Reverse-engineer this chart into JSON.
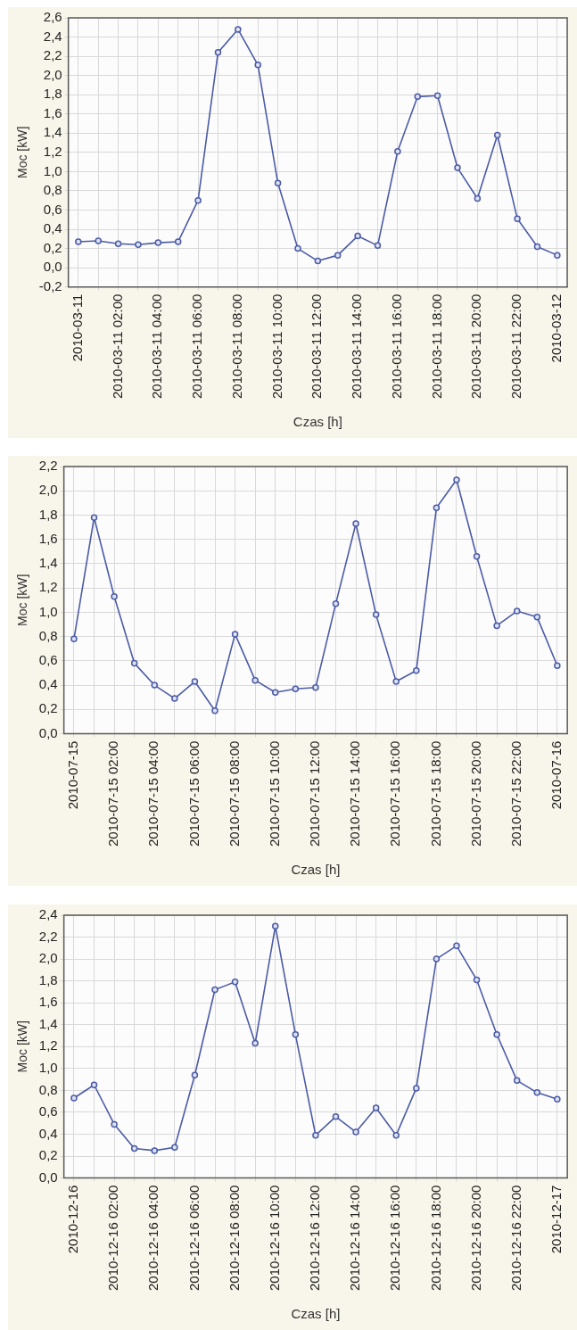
{
  "chart_data": [
    {
      "type": "line",
      "xlabel": "Czas [h]",
      "ylabel": "Moc [kW]",
      "color": "#4b5ba6",
      "marker": "circle",
      "line_style": "solid",
      "grid": true,
      "categories": [
        "2010-03-11",
        null,
        "2010-03-11 02:00",
        null,
        "2010-03-11 04:00",
        null,
        "2010-03-11 06:00",
        null,
        "2010-03-11 08:00",
        null,
        "2010-03-11 10:00",
        null,
        "2010-03-11 12:00",
        null,
        "2010-03-11 14:00",
        null,
        "2010-03-11 16:00",
        null,
        "2010-03-11 18:00",
        null,
        "2010-03-11 20:00",
        null,
        "2010-03-11 22:00",
        null,
        "2010-03-12"
      ],
      "values": [
        0.27,
        0.28,
        0.25,
        0.24,
        0.26,
        0.27,
        0.7,
        2.24,
        2.48,
        2.11,
        0.88,
        0.2,
        0.07,
        0.13,
        0.33,
        0.23,
        1.21,
        1.78,
        1.79,
        1.04,
        0.72,
        1.38,
        0.51,
        0.22,
        0.13
      ],
      "ylim": [
        -0.2,
        2.6
      ],
      "yticks": [
        {
          "value": -0.2,
          "label": "-0,2"
        },
        {
          "value": 0,
          "label": "0,0"
        },
        {
          "value": 0.2,
          "label": "0,2"
        },
        {
          "value": 0.4,
          "label": "0,4"
        },
        {
          "value": 0.6,
          "label": "0,6"
        },
        {
          "value": 0.8,
          "label": "0,8"
        },
        {
          "value": 1.0,
          "label": "1,0"
        },
        {
          "value": 1.2,
          "label": "1,2"
        },
        {
          "value": 1.4,
          "label": "1,4"
        },
        {
          "value": 1.6,
          "label": "1,6"
        },
        {
          "value": 1.8,
          "label": "1,8"
        },
        {
          "value": 2.0,
          "label": "2,0"
        },
        {
          "value": 2.2,
          "label": "2,2"
        },
        {
          "value": 2.4,
          "label": "2,4"
        },
        {
          "value": 2.6,
          "label": "2,6"
        }
      ]
    },
    {
      "type": "line",
      "xlabel": "Czas [h]",
      "ylabel": "Moc [kW]",
      "color": "#4b5ba6",
      "marker": "circle",
      "line_style": "solid",
      "grid": true,
      "categories": [
        "2010-07-15",
        null,
        "2010-07-15 02:00",
        null,
        "2010-07-15 04:00",
        null,
        "2010-07-15 06:00",
        null,
        "2010-07-15 08:00",
        null,
        "2010-07-15 10:00",
        null,
        "2010-07-15 12:00",
        null,
        "2010-07-15 14:00",
        null,
        "2010-07-15 16:00",
        null,
        "2010-07-15 18:00",
        null,
        "2010-07-15 20:00",
        null,
        "2010-07-15 22:00",
        null,
        "2010-07-16"
      ],
      "values": [
        0.78,
        1.78,
        1.13,
        0.58,
        0.4,
        0.29,
        0.43,
        0.19,
        0.82,
        0.44,
        0.34,
        0.37,
        0.38,
        1.07,
        1.73,
        0.98,
        0.43,
        0.52,
        1.86,
        2.09,
        1.46,
        0.89,
        1.01,
        0.96,
        0.56
      ],
      "ylim": [
        0,
        2.2
      ],
      "yticks": [
        {
          "value": 0,
          "label": "0,0"
        },
        {
          "value": 0.2,
          "label": "0,2"
        },
        {
          "value": 0.4,
          "label": "0,4"
        },
        {
          "value": 0.6,
          "label": "0,6"
        },
        {
          "value": 0.8,
          "label": "0,8"
        },
        {
          "value": 1.0,
          "label": "1,0"
        },
        {
          "value": 1.2,
          "label": "1,2"
        },
        {
          "value": 1.4,
          "label": "1,4"
        },
        {
          "value": 1.6,
          "label": "1,6"
        },
        {
          "value": 1.8,
          "label": "1,8"
        },
        {
          "value": 2.0,
          "label": "2,0"
        },
        {
          "value": 2.2,
          "label": "2,2"
        }
      ]
    },
    {
      "type": "line",
      "xlabel": "Czas [h]",
      "ylabel": "Moc [kW]",
      "color": "#4b5ba6",
      "marker": "circle",
      "line_style": "solid",
      "grid": true,
      "categories": [
        "2010-12-16",
        null,
        "2010-12-16 02:00",
        null,
        "2010-12-16 04:00",
        null,
        "2010-12-16 06:00",
        null,
        "2010-12-16 08:00",
        null,
        "2010-12-16 10:00",
        null,
        "2010-12-16 12:00",
        null,
        "2010-12-16 14:00",
        null,
        "2010-12-16 16:00",
        null,
        "2010-12-16 18:00",
        null,
        "2010-12-16 20:00",
        null,
        "2010-12-16 22:00",
        null,
        "2010-12-17"
      ],
      "values": [
        0.73,
        0.85,
        0.49,
        0.27,
        0.25,
        0.28,
        0.94,
        1.72,
        1.79,
        1.23,
        2.3,
        1.31,
        0.39,
        0.56,
        0.42,
        0.64,
        0.39,
        0.82,
        2.0,
        2.12,
        1.81,
        1.31,
        0.89,
        0.78,
        0.72
      ],
      "ylim": [
        0,
        2.4
      ],
      "yticks": [
        {
          "value": 0,
          "label": "0,0"
        },
        {
          "value": 0.2,
          "label": "0,2"
        },
        {
          "value": 0.4,
          "label": "0,4"
        },
        {
          "value": 0.6,
          "label": "0,6"
        },
        {
          "value": 0.8,
          "label": "0,8"
        },
        {
          "value": 1.0,
          "label": "1,0"
        },
        {
          "value": 1.2,
          "label": "1,2"
        },
        {
          "value": 1.4,
          "label": "1,4"
        },
        {
          "value": 1.6,
          "label": "1,6"
        },
        {
          "value": 1.8,
          "label": "1,8"
        },
        {
          "value": 2.0,
          "label": "2,0"
        },
        {
          "value": 2.2,
          "label": "2,2"
        },
        {
          "value": 2.4,
          "label": "2,4"
        }
      ]
    }
  ]
}
